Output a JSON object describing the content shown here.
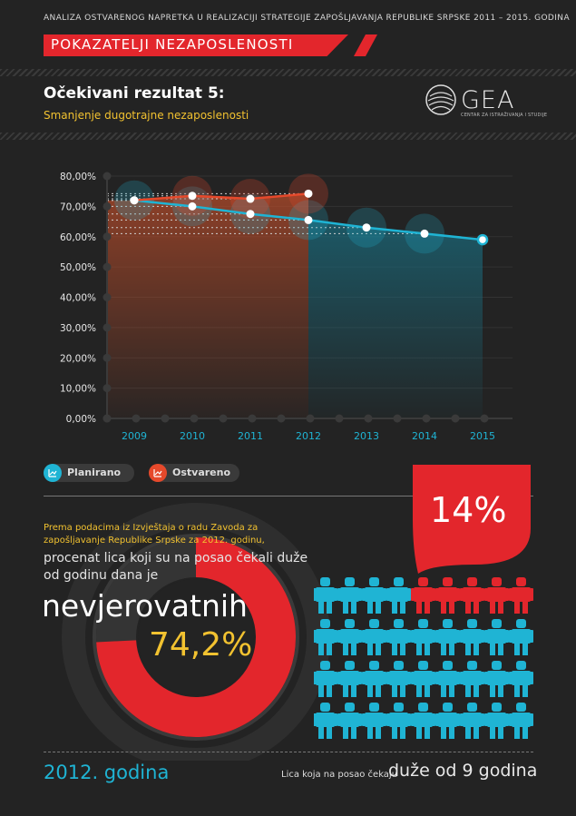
{
  "header": {
    "top_line": "ANALIZA OSTVARENOG NAPRETKA U REALIZACIJI  STRATEGIJE ZAPOŠLJAVANJA REPUBLIKE SRPSKE 2011 – 2015. GODINA",
    "banner": "POKAZATELJI NEZAPOSLENOSTI"
  },
  "result": {
    "title": "Očekivani rezultat 5:",
    "subtitle": "Smanjenje dugotrajne nezaposlenosti"
  },
  "logo": {
    "name": "GEA",
    "tagline": "CENTAR ZA ISTRAŽIVANJA I STUDIJE"
  },
  "chart_data": {
    "type": "line",
    "categories": [
      "2009",
      "2010",
      "2011",
      "2012",
      "2013",
      "2014",
      "2015"
    ],
    "series": [
      {
        "name": "Planirano",
        "values": [
          72,
          70,
          67.5,
          65.5,
          63,
          61,
          59
        ],
        "color": "#1fb4d4"
      },
      {
        "name": "Ostvareno",
        "values": [
          72,
          73.5,
          72.5,
          74.2,
          null,
          null,
          null
        ],
        "color": "#e6492b"
      }
    ],
    "y_ticks": [
      "0,00%",
      "10,00%",
      "20,00%",
      "30,00%",
      "40,00%",
      "50,00%",
      "60,00%",
      "70,00%",
      "80,00%"
    ],
    "ylim": [
      0,
      80
    ],
    "legend_position": "bottom-left"
  },
  "legend": {
    "planned": "Planirano",
    "actual": "Ostvareno"
  },
  "info": {
    "intro": "Prema podacima iz Izvještaja o radu Zavoda za zapošljavanje Republike Srpske za 2012. godinu,",
    "main": "procenat lica koji su na posao čekali duže od godinu dana je",
    "big_word": "nevjerovatnih",
    "big_value": "74,2%",
    "donut_fraction": 0.742,
    "year": "2012. godina"
  },
  "badge": {
    "value": "14%"
  },
  "people": {
    "total": 36,
    "highlighted": 5,
    "caption_small": "Lica koja na posao čekaju",
    "caption_big": "duže od 9 godina"
  },
  "colors": {
    "accent_red": "#e3262c",
    "accent_blue": "#1fb4d4",
    "accent_yellow": "#f2c230",
    "accent_orange": "#e6492b"
  }
}
